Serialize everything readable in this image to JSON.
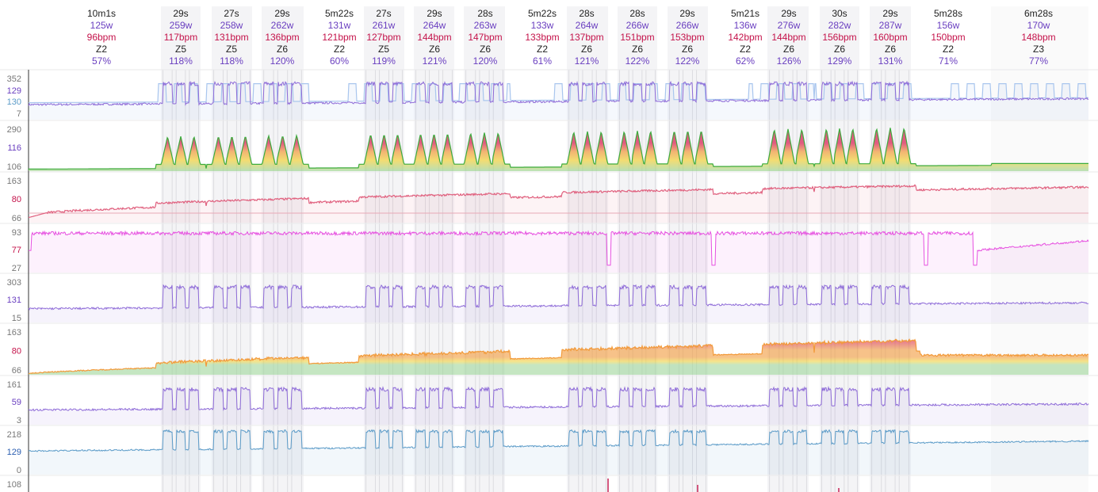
{
  "chart_data": {
    "type": "line",
    "title": "",
    "colors": {
      "power": "#8e6bd8",
      "power_light": "#a9c6ee",
      "hr": "#e0607e",
      "cadence": "#e64fe0",
      "hr_zone_red": "#d8184f",
      "hr_zone_orange": "#f29a3a",
      "hr_zone_yellow": "#f2d23a",
      "hr_zone_green": "#3cab3c",
      "speed": "#5b9bc8",
      "bpm_text": "#c4124a",
      "watt_text": "#6a3fc0",
      "zone_text": "#222222"
    },
    "intervals": [
      {
        "duration": "10m1s",
        "power": "125w",
        "hr": "96bpm",
        "zone": "Z2",
        "pct": "57%",
        "kind": "rest",
        "minutes": 10.02
      },
      {
        "duration": "29s",
        "power": "259w",
        "hr": "117bpm",
        "zone": "Z5",
        "pct": "118%",
        "kind": "work",
        "minutes": 0.48
      },
      {
        "duration": "27s",
        "power": "258w",
        "hr": "131bpm",
        "zone": "Z5",
        "pct": "118%",
        "kind": "work",
        "minutes": 0.45
      },
      {
        "duration": "29s",
        "power": "262w",
        "hr": "136bpm",
        "zone": "Z6",
        "pct": "120%",
        "kind": "work",
        "minutes": 0.48
      },
      {
        "duration": "5m22s",
        "power": "131w",
        "hr": "121bpm",
        "zone": "Z2",
        "pct": "60%",
        "kind": "rest",
        "minutes": 5.37
      },
      {
        "duration": "27s",
        "power": "261w",
        "hr": "127bpm",
        "zone": "Z5",
        "pct": "119%",
        "kind": "work",
        "minutes": 0.45
      },
      {
        "duration": "29s",
        "power": "264w",
        "hr": "144bpm",
        "zone": "Z6",
        "pct": "121%",
        "kind": "work",
        "minutes": 0.48
      },
      {
        "duration": "28s",
        "power": "263w",
        "hr": "147bpm",
        "zone": "Z6",
        "pct": "120%",
        "kind": "work",
        "minutes": 0.47
      },
      {
        "duration": "5m22s",
        "power": "133w",
        "hr": "133bpm",
        "zone": "Z2",
        "pct": "61%",
        "kind": "rest",
        "minutes": 5.37
      },
      {
        "duration": "28s",
        "power": "264w",
        "hr": "137bpm",
        "zone": "Z6",
        "pct": "121%",
        "kind": "work",
        "minutes": 0.47
      },
      {
        "duration": "28s",
        "power": "266w",
        "hr": "151bpm",
        "zone": "Z6",
        "pct": "122%",
        "kind": "work",
        "minutes": 0.47
      },
      {
        "duration": "29s",
        "power": "266w",
        "hr": "153bpm",
        "zone": "Z6",
        "pct": "122%",
        "kind": "work",
        "minutes": 0.48
      },
      {
        "duration": "5m21s",
        "power": "136w",
        "hr": "142bpm",
        "zone": "Z2",
        "pct": "62%",
        "kind": "rest",
        "minutes": 5.35
      },
      {
        "duration": "29s",
        "power": "276w",
        "hr": "144bpm",
        "zone": "Z6",
        "pct": "126%",
        "kind": "work",
        "minutes": 0.48
      },
      {
        "duration": "30s",
        "power": "282w",
        "hr": "156bpm",
        "zone": "Z6",
        "pct": "129%",
        "kind": "work",
        "minutes": 0.5
      },
      {
        "duration": "29s",
        "power": "287w",
        "hr": "160bpm",
        "zone": "Z6",
        "pct": "131%",
        "kind": "work",
        "minutes": 0.48
      },
      {
        "duration": "5m28s",
        "power": "156w",
        "hr": "150bpm",
        "zone": "Z2",
        "pct": "71%",
        "kind": "rest",
        "minutes": 5.47
      },
      {
        "duration": "6m28s",
        "power": "170w",
        "hr": "148bpm",
        "zone": "Z3",
        "pct": "77%",
        "kind": "rest",
        "minutes": 6.47
      }
    ],
    "rows": [
      {
        "name": "power",
        "ticks": [
          "352",
          "129",
          "130",
          "7"
        ],
        "tick_colors": [
          "#777777",
          "#6a3fc0",
          "#5b9bc8",
          "#777777"
        ],
        "ylim": [
          7,
          352
        ],
        "series_color": "#8e6bd8"
      },
      {
        "name": "hr-zones-1",
        "ticks": [
          "290",
          "116",
          "106"
        ],
        "tick_colors": [
          "#777777",
          "#6a3fc0",
          "#777777"
        ],
        "ylim": [
          106,
          290
        ],
        "series_color": "#3cab3c"
      },
      {
        "name": "heart-rate",
        "ticks": [
          "163",
          "80",
          "66"
        ],
        "tick_colors": [
          "#777777",
          "#c4124a",
          "#777777"
        ],
        "ylim": [
          66,
          163
        ],
        "series_color": "#e0607e"
      },
      {
        "name": "cadence",
        "ticks": [
          "93",
          "77",
          "27"
        ],
        "tick_colors": [
          "#777777",
          "#c4124a",
          "#777777"
        ],
        "ylim": [
          27,
          93
        ],
        "series_color": "#e64fe0"
      },
      {
        "name": "power-2",
        "ticks": [
          "303",
          "131",
          "15"
        ],
        "tick_colors": [
          "#777777",
          "#6a3fc0",
          "#777777"
        ],
        "ylim": [
          15,
          303
        ],
        "series_color": "#8e6bd8"
      },
      {
        "name": "hr-zones-2",
        "ticks": [
          "163",
          "80",
          "66"
        ],
        "tick_colors": [
          "#777777",
          "#c4124a",
          "#777777"
        ],
        "ylim": [
          66,
          163
        ],
        "series_color": "#3cab3c"
      },
      {
        "name": "power-3",
        "ticks": [
          "161",
          "59",
          "3"
        ],
        "tick_colors": [
          "#777777",
          "#6a3fc0",
          "#777777"
        ],
        "ylim": [
          3,
          161
        ],
        "series_color": "#8e6bd8"
      },
      {
        "name": "speed",
        "ticks": [
          "218",
          "129",
          "0"
        ],
        "tick_colors": [
          "#777777",
          "#2a5db0",
          "#777777"
        ],
        "ylim": [
          0,
          218
        ],
        "series_color": "#5b9bc8"
      },
      {
        "name": "extra",
        "ticks": [
          "108"
        ],
        "tick_colors": [
          "#777777"
        ],
        "ylim": [
          0,
          108
        ],
        "series_color": "#c4124a"
      }
    ]
  }
}
